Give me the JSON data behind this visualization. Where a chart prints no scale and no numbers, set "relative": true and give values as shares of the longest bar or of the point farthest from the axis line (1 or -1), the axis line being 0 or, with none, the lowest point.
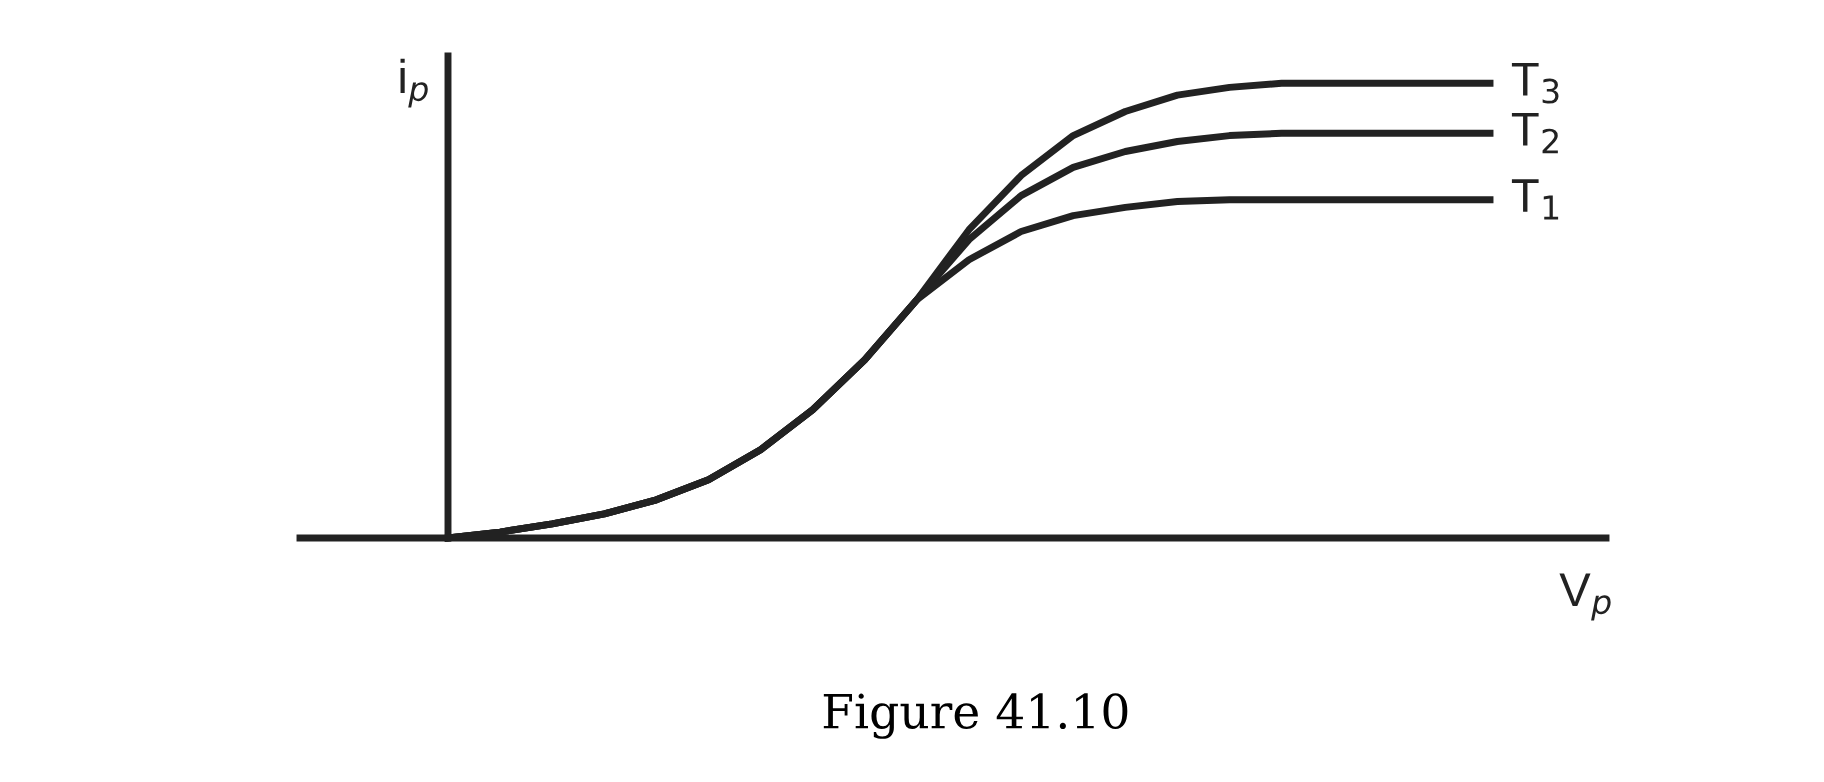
{
  "chart_data": {
    "type": "line",
    "relative": true,
    "xlabel": "V$_{p}$",
    "ylabel": "i$_{p}$",
    "annotations": [
      "Figure 41.10"
    ],
    "categories": [
      null,
      null,
      null,
      null,
      null,
      null,
      null,
      null,
      null,
      null,
      null,
      null,
      null,
      null,
      null,
      null,
      null,
      null,
      null,
      null,
      null
    ],
    "series": [
      {
        "name": "T$_{3}$",
        "color": "#222222",
        "values": [
          0,
          0.013,
          0.031,
          0.053,
          0.084,
          0.128,
          0.194,
          0.282,
          0.392,
          0.524,
          0.678,
          0.797,
          0.885,
          0.938,
          0.974,
          0.991,
          1,
          1,
          1,
          1,
          1
        ]
      },
      {
        "name": "T$_{2}$",
        "color": "#222222",
        "values": [
          0,
          0.013,
          0.031,
          0.053,
          0.084,
          0.128,
          0.194,
          0.282,
          0.392,
          0.524,
          0.656,
          0.753,
          0.815,
          0.85,
          0.872,
          0.885,
          0.89,
          0.89,
          0.89,
          0.89,
          0.89
        ]
      },
      {
        "name": "T$_{1}$",
        "color": "#222222",
        "values": [
          0,
          0.013,
          0.031,
          0.053,
          0.084,
          0.128,
          0.194,
          0.282,
          0.392,
          0.524,
          0.612,
          0.674,
          0.709,
          0.727,
          0.74,
          0.744,
          0.744,
          0.744,
          0.744,
          0.744,
          0.744
        ]
      }
    ],
    "legend": false,
    "marker": "none",
    "line_style": "solid"
  }
}
